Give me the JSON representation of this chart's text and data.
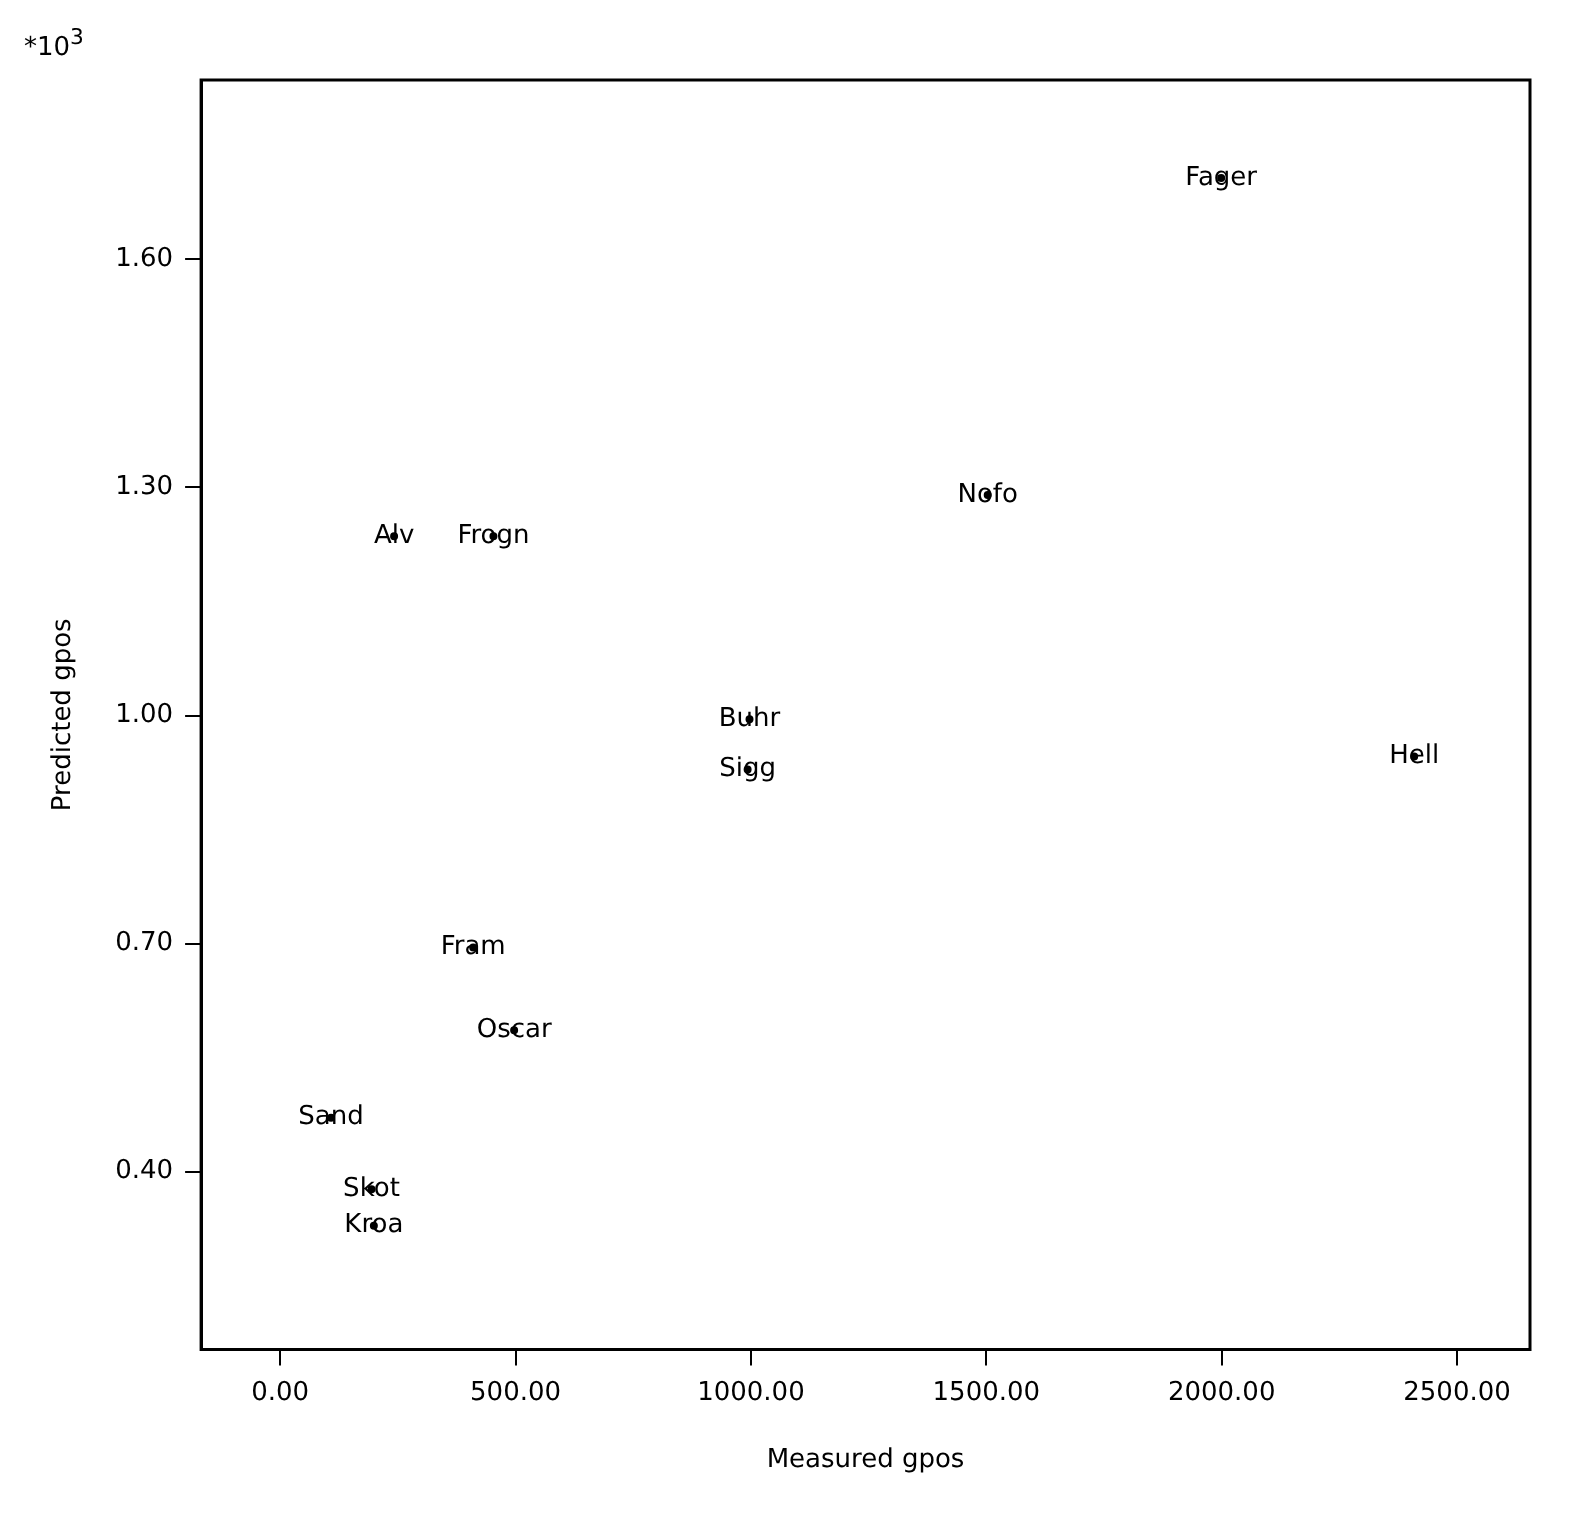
{
  "chart_data": {
    "type": "scatter",
    "xlabel": "Measured gpos",
    "ylabel": "Predicted gpos",
    "annotations": [
      "*10$^{3}$"
    ],
    "x": [
      1999,
      1503,
      242,
      453,
      997,
      993,
      2409,
      410,
      497,
      108,
      194,
      199
    ],
    "values": [
      1.707,
      1.29,
      1.236,
      1.236,
      0.995,
      0.929,
      0.946,
      0.695,
      0.586,
      0.471,
      0.377,
      0.329
    ],
    "value_labels": [
      "Fager",
      "Nofo",
      "Alv",
      "Frogn",
      "Buhr",
      "Sigg",
      "Hell",
      "Fram",
      "Oscar",
      "Sand",
      "Skot",
      "Kroa"
    ],
    "color": "#000000",
    "grid": false,
    "legend": false,
    "xlim": [
      -168,
      2655
    ],
    "ylim": [
      0.166,
      1.836
    ],
    "xticks": [
      {
        "value": 0,
        "label": "0.00"
      },
      {
        "value": 500,
        "label": "500.00"
      },
      {
        "value": 1000,
        "label": "1000.00"
      },
      {
        "value": 1500,
        "label": "1500.00"
      },
      {
        "value": 2000,
        "label": "2000.00"
      },
      {
        "value": 2500,
        "label": "2500.00"
      }
    ],
    "yticks": [
      {
        "value": 0.4,
        "label": "0.40"
      },
      {
        "value": 0.7,
        "label": "0.70"
      },
      {
        "value": 1.0,
        "label": "1.00"
      },
      {
        "value": 1.3,
        "label": "1.30"
      },
      {
        "value": 1.6,
        "label": "1.60"
      }
    ]
  }
}
